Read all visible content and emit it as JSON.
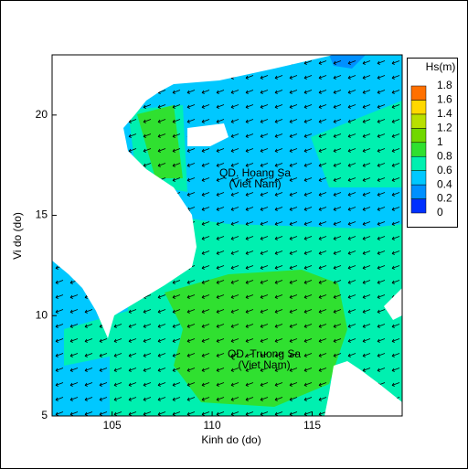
{
  "chart_data": {
    "type": "contour",
    "x_label": "Kinh do (do)",
    "y_label": "Vi do (do)",
    "xlim": [
      102,
      119.5
    ],
    "ylim": [
      5,
      23
    ],
    "xticks": [
      105,
      110,
      115
    ],
    "yticks": [
      5,
      10,
      15,
      20
    ],
    "colorbar": {
      "title": "Hs(m)",
      "levels": [
        0,
        0.2,
        0.4,
        0.6,
        0.8,
        1,
        1.2,
        1.4,
        1.6,
        1.8
      ],
      "colors": [
        "#0030ff",
        "#0090ff",
        "#00c8ff",
        "#00f0b0",
        "#30e030",
        "#70d800",
        "#b8e000",
        "#ffd800",
        "#ff7000"
      ]
    },
    "annotations": [
      "QD. Hoang Sa",
      "(Viet Nam)",
      "QD. Truong Sa",
      "(Viet Nam)"
    ]
  }
}
